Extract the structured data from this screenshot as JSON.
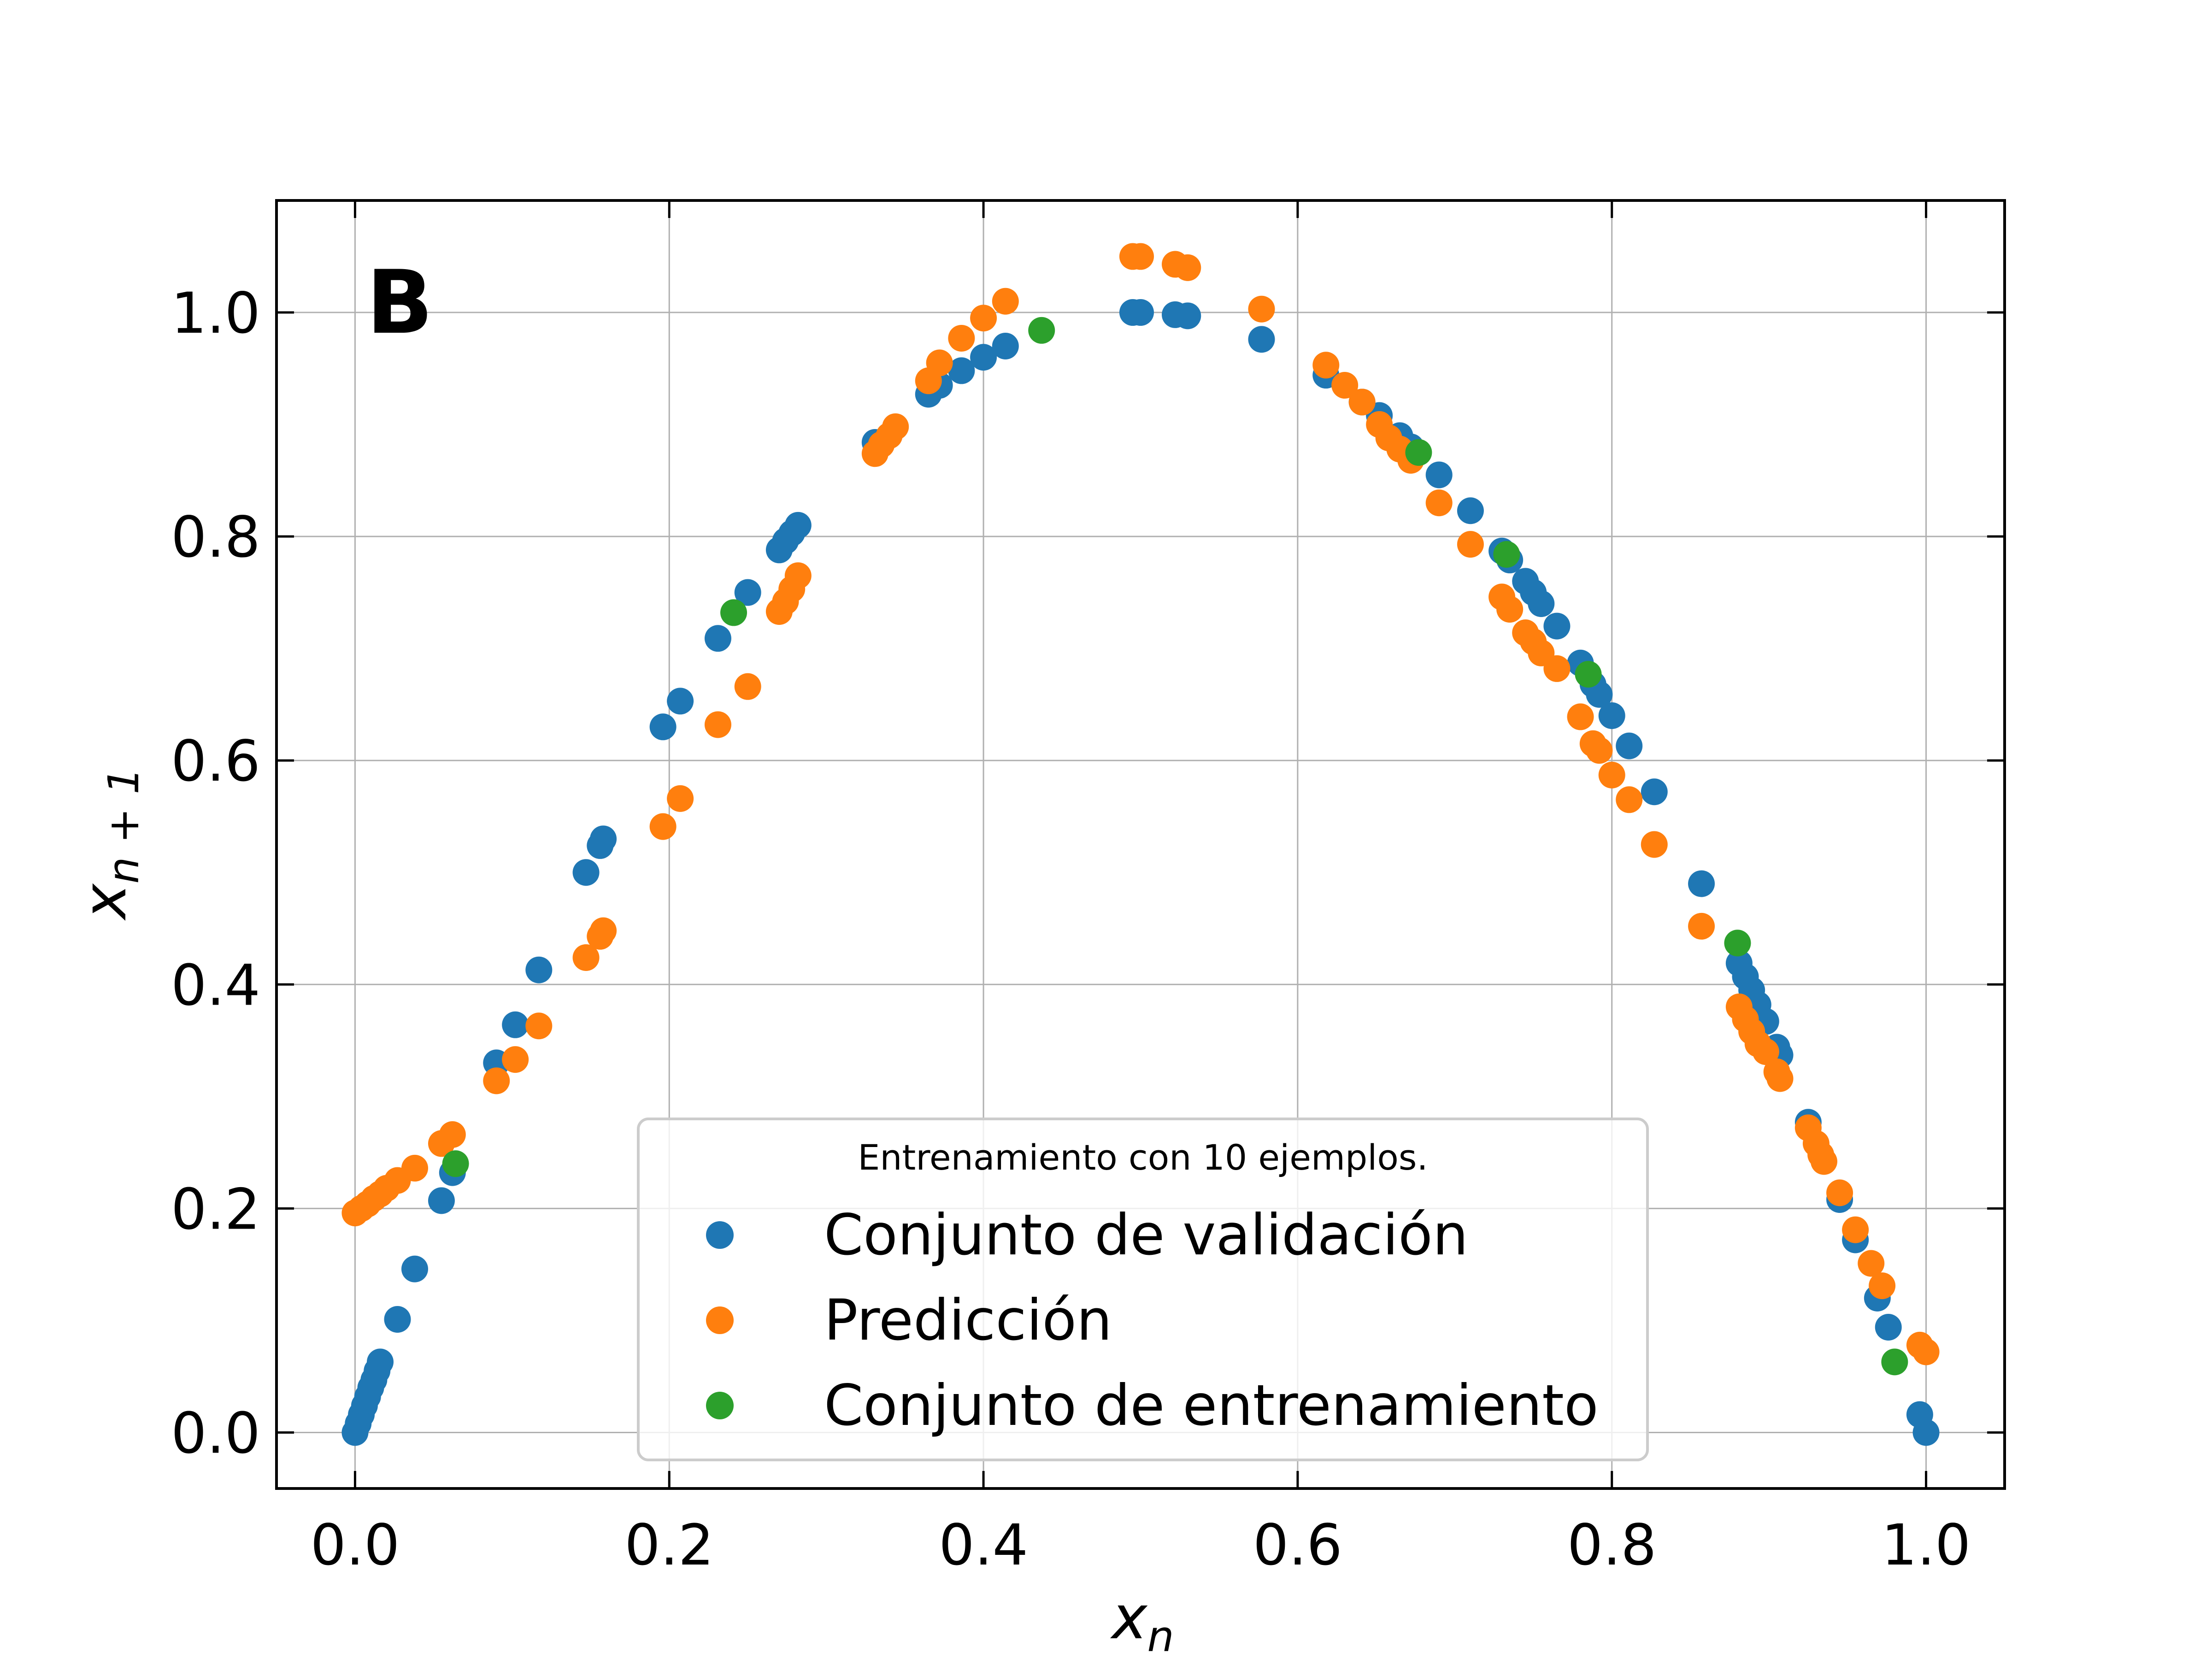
{
  "chart_data": {
    "type": "scatter",
    "panel_label": "B",
    "xlabel_base": "x",
    "xlabel_sub": "n",
    "ylabel_base": "x",
    "ylabel_sub": "n + 1",
    "xlim": [
      -0.05,
      1.05
    ],
    "ylim": [
      -0.05,
      1.1
    ],
    "xticks": [
      0.0,
      0.2,
      0.4,
      0.6,
      0.8,
      1.0
    ],
    "yticks": [
      0.0,
      0.2,
      0.4,
      0.6,
      0.8,
      1.0
    ],
    "xtick_labels": [
      "0.0",
      "0.2",
      "0.4",
      "0.6",
      "0.8",
      "1.0"
    ],
    "ytick_labels": [
      "0.0",
      "0.2",
      "0.4",
      "0.6",
      "0.8",
      "1.0"
    ],
    "grid": true,
    "legend": {
      "placement": "lower-center",
      "title": "Entrenamiento con 10 ejemplos."
    },
    "series": [
      {
        "name": "Conjunto de validación",
        "color": "#1f77b4",
        "points": [
          [
            0.0,
            0.0
          ],
          [
            0.002,
            0.008
          ],
          [
            0.004,
            0.016
          ],
          [
            0.006,
            0.024
          ],
          [
            0.008,
            0.032
          ],
          [
            0.01,
            0.04
          ],
          [
            0.012,
            0.047
          ],
          [
            0.014,
            0.055
          ],
          [
            0.016,
            0.063
          ],
          [
            0.027,
            0.101
          ],
          [
            0.038,
            0.146
          ],
          [
            0.055,
            0.207
          ],
          [
            0.062,
            0.232
          ],
          [
            0.09,
            0.33
          ],
          [
            0.102,
            0.364
          ],
          [
            0.117,
            0.413
          ],
          [
            0.147,
            0.5
          ],
          [
            0.156,
            0.524
          ],
          [
            0.158,
            0.53
          ],
          [
            0.196,
            0.63
          ],
          [
            0.207,
            0.653
          ],
          [
            0.231,
            0.709
          ],
          [
            0.25,
            0.75
          ],
          [
            0.27,
            0.788
          ],
          [
            0.274,
            0.796
          ],
          [
            0.278,
            0.803
          ],
          [
            0.282,
            0.81
          ],
          [
            0.331,
            0.884
          ],
          [
            0.365,
            0.927
          ],
          [
            0.372,
            0.935
          ],
          [
            0.386,
            0.948
          ],
          [
            0.4,
            0.96
          ],
          [
            0.414,
            0.97
          ],
          [
            0.495,
            1.0
          ],
          [
            0.5,
            1.0
          ],
          [
            0.522,
            0.998
          ],
          [
            0.53,
            0.997
          ],
          [
            0.577,
            0.976
          ],
          [
            0.618,
            0.944
          ],
          [
            0.641,
            0.92
          ],
          [
            0.652,
            0.908
          ],
          [
            0.665,
            0.89
          ],
          [
            0.672,
            0.88
          ],
          [
            0.69,
            0.855
          ],
          [
            0.71,
            0.823
          ],
          [
            0.73,
            0.787
          ],
          [
            0.735,
            0.779
          ],
          [
            0.745,
            0.76
          ],
          [
            0.75,
            0.75
          ],
          [
            0.755,
            0.74
          ],
          [
            0.765,
            0.72
          ],
          [
            0.78,
            0.687
          ],
          [
            0.788,
            0.668
          ],
          [
            0.792,
            0.659
          ],
          [
            0.8,
            0.64
          ],
          [
            0.811,
            0.613
          ],
          [
            0.827,
            0.572
          ],
          [
            0.857,
            0.49
          ],
          [
            0.881,
            0.419
          ],
          [
            0.885,
            0.407
          ],
          [
            0.889,
            0.395
          ],
          [
            0.893,
            0.382
          ],
          [
            0.898,
            0.367
          ],
          [
            0.905,
            0.344
          ],
          [
            0.907,
            0.337
          ],
          [
            0.925,
            0.277
          ],
          [
            0.945,
            0.208
          ],
          [
            0.955,
            0.172
          ],
          [
            0.969,
            0.12
          ],
          [
            0.976,
            0.094
          ],
          [
            0.996,
            0.016
          ],
          [
            1.0,
            0.0
          ]
        ]
      },
      {
        "name": "Predicción",
        "color": "#ff7f0e",
        "points": [
          [
            0.0,
            0.196
          ],
          [
            0.004,
            0.2
          ],
          [
            0.008,
            0.204
          ],
          [
            0.012,
            0.209
          ],
          [
            0.016,
            0.213
          ],
          [
            0.02,
            0.218
          ],
          [
            0.027,
            0.225
          ],
          [
            0.038,
            0.236
          ],
          [
            0.055,
            0.258
          ],
          [
            0.062,
            0.266
          ],
          [
            0.09,
            0.314
          ],
          [
            0.102,
            0.333
          ],
          [
            0.117,
            0.363
          ],
          [
            0.147,
            0.424
          ],
          [
            0.156,
            0.443
          ],
          [
            0.158,
            0.448
          ],
          [
            0.196,
            0.541
          ],
          [
            0.207,
            0.566
          ],
          [
            0.231,
            0.632
          ],
          [
            0.25,
            0.666
          ],
          [
            0.27,
            0.733
          ],
          [
            0.274,
            0.742
          ],
          [
            0.278,
            0.753
          ],
          [
            0.282,
            0.765
          ],
          [
            0.331,
            0.874
          ],
          [
            0.335,
            0.882
          ],
          [
            0.34,
            0.89
          ],
          [
            0.344,
            0.898
          ],
          [
            0.365,
            0.939
          ],
          [
            0.372,
            0.955
          ],
          [
            0.386,
            0.977
          ],
          [
            0.4,
            0.995
          ],
          [
            0.414,
            1.01
          ],
          [
            0.495,
            1.05
          ],
          [
            0.5,
            1.05
          ],
          [
            0.522,
            1.043
          ],
          [
            0.53,
            1.04
          ],
          [
            0.577,
            1.003
          ],
          [
            0.618,
            0.953
          ],
          [
            0.63,
            0.935
          ],
          [
            0.641,
            0.92
          ],
          [
            0.652,
            0.9
          ],
          [
            0.658,
            0.888
          ],
          [
            0.665,
            0.878
          ],
          [
            0.672,
            0.868
          ],
          [
            0.69,
            0.83
          ],
          [
            0.71,
            0.793
          ],
          [
            0.73,
            0.746
          ],
          [
            0.735,
            0.735
          ],
          [
            0.745,
            0.714
          ],
          [
            0.75,
            0.706
          ],
          [
            0.755,
            0.696
          ],
          [
            0.765,
            0.682
          ],
          [
            0.78,
            0.639
          ],
          [
            0.788,
            0.615
          ],
          [
            0.792,
            0.609
          ],
          [
            0.8,
            0.587
          ],
          [
            0.811,
            0.565
          ],
          [
            0.827,
            0.525
          ],
          [
            0.857,
            0.452
          ],
          [
            0.881,
            0.38
          ],
          [
            0.885,
            0.369
          ],
          [
            0.889,
            0.358
          ],
          [
            0.893,
            0.347
          ],
          [
            0.898,
            0.34
          ],
          [
            0.905,
            0.322
          ],
          [
            0.907,
            0.316
          ],
          [
            0.925,
            0.272
          ],
          [
            0.93,
            0.258
          ],
          [
            0.933,
            0.248
          ],
          [
            0.935,
            0.242
          ],
          [
            0.945,
            0.214
          ],
          [
            0.955,
            0.181
          ],
          [
            0.965,
            0.151
          ],
          [
            0.972,
            0.131
          ],
          [
            0.996,
            0.078
          ],
          [
            1.0,
            0.072
          ]
        ]
      },
      {
        "name": "Conjunto de entrenamiento",
        "color": "#2ca02c",
        "points": [
          [
            0.064,
            0.24
          ],
          [
            0.241,
            0.732
          ],
          [
            0.437,
            0.984
          ],
          [
            0.677,
            0.875
          ],
          [
            0.733,
            0.784
          ],
          [
            0.785,
            0.677
          ],
          [
            0.88,
            0.437
          ],
          [
            0.98,
            0.063
          ]
        ]
      }
    ]
  }
}
